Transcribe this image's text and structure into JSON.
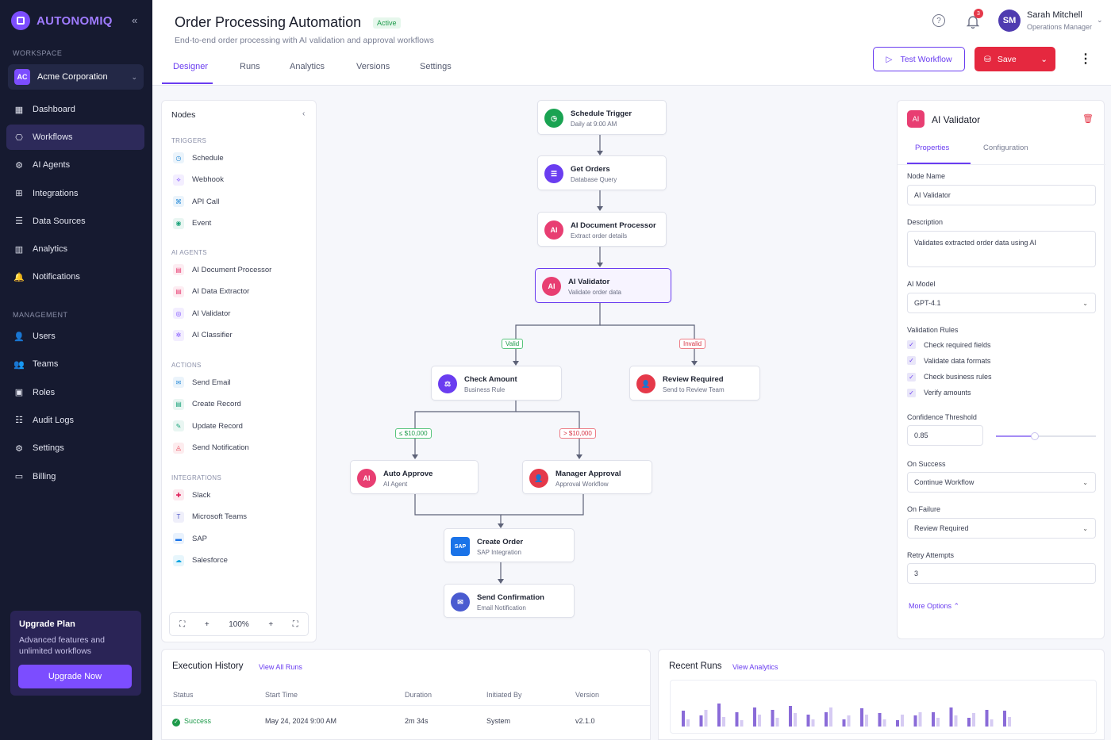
{
  "brand": {
    "name": "AUTONOMIQ"
  },
  "sidebar": {
    "workspace_label": "WORKSPACE",
    "workspace": {
      "initials": "AC",
      "name": "Acme Corporation"
    },
    "items": [
      {
        "label": "Dashboard",
        "icon": "dashboard-icon"
      },
      {
        "label": "Workflows",
        "icon": "workflow-icon",
        "active": true
      },
      {
        "label": "AI Agents",
        "icon": "ai-agent-icon"
      },
      {
        "label": "Integrations",
        "icon": "integrations-icon"
      },
      {
        "label": "Data Sources",
        "icon": "database-icon"
      },
      {
        "label": "Analytics",
        "icon": "analytics-icon"
      },
      {
        "label": "Notifications",
        "icon": "bell-icon"
      }
    ],
    "management_label": "MANAGEMENT",
    "management_items": [
      {
        "label": "Users",
        "icon": "users-icon"
      },
      {
        "label": "Teams",
        "icon": "teams-icon"
      },
      {
        "label": "Roles",
        "icon": "roles-icon"
      },
      {
        "label": "Audit Logs",
        "icon": "audit-icon"
      },
      {
        "label": "Settings",
        "icon": "settings-icon"
      },
      {
        "label": "Billing",
        "icon": "billing-icon"
      }
    ],
    "upgrade": {
      "title": "Upgrade Plan",
      "description": "Advanced features and unlimited workflows",
      "button": "Upgrade Now"
    }
  },
  "header": {
    "title": "Order Processing Automation",
    "status": "Active",
    "subtitle": "End-to-end order processing with AI validation and approval workflows",
    "tabs": [
      "Designer",
      "Runs",
      "Analytics",
      "Versions",
      "Settings"
    ],
    "notification_count": "3",
    "user": {
      "initials": "SM",
      "name": "Sarah Mitchell",
      "role": "Operations Manager"
    },
    "test_button": "Test Workflow",
    "save_button": "Save"
  },
  "nodes_panel": {
    "title": "Nodes",
    "sections": [
      {
        "label": "TRIGGERS",
        "items": [
          {
            "label": "Schedule",
            "color": "#2a8bd8",
            "icon": "clock-icon"
          },
          {
            "label": "Webhook",
            "color": "#7c4dff",
            "icon": "webhook-icon"
          },
          {
            "label": "API Call",
            "color": "#2a8bd8",
            "icon": "api-icon"
          },
          {
            "label": "Event",
            "color": "#1aa37a",
            "icon": "event-icon"
          }
        ]
      },
      {
        "label": "AI AGENTS",
        "items": [
          {
            "label": "AI Document Processor",
            "color": "#e83e72",
            "icon": "document-icon"
          },
          {
            "label": "AI Data Extractor",
            "color": "#e83e72",
            "icon": "extract-icon"
          },
          {
            "label": "AI Validator",
            "color": "#7c4dff",
            "icon": "validator-icon"
          },
          {
            "label": "AI Classifier",
            "color": "#7c4dff",
            "icon": "classifier-icon"
          }
        ]
      },
      {
        "label": "ACTIONS",
        "items": [
          {
            "label": "Send Email",
            "color": "#2a8bd8",
            "icon": "email-icon"
          },
          {
            "label": "Create Record",
            "color": "#1aa37a",
            "icon": "record-icon"
          },
          {
            "label": "Update Record",
            "color": "#1aa37a",
            "icon": "edit-icon"
          },
          {
            "label": "Send Notification",
            "color": "#e5394a",
            "icon": "bell-icon"
          }
        ]
      },
      {
        "label": "INTEGRATIONS",
        "items": [
          {
            "label": "Slack",
            "color": "#e01e5a",
            "icon": "slack-icon"
          },
          {
            "label": "Microsoft Teams",
            "color": "#5059c9",
            "icon": "teams-icon"
          },
          {
            "label": "SAP",
            "color": "#1a73e8",
            "icon": "sap-icon"
          },
          {
            "label": "Salesforce",
            "color": "#00a1e0",
            "icon": "salesforce-icon"
          }
        ]
      }
    ],
    "zoom": "100%"
  },
  "workflow": {
    "nodes": [
      {
        "id": "trigger",
        "title": "Schedule Trigger",
        "sub": "Daily at 9:00 AM",
        "color": "#1aa352",
        "icon": "clock-icon",
        "glyph": "◷"
      },
      {
        "id": "orders",
        "title": "Get Orders",
        "sub": "Database Query",
        "color": "#6a3df0",
        "icon": "database-icon",
        "glyph": "☰"
      },
      {
        "id": "docproc",
        "title": "AI Document Processor",
        "sub": "Extract order details",
        "color": "#e83e72",
        "icon": "ai-icon",
        "glyph": "AI"
      },
      {
        "id": "validator",
        "title": "AI Validator",
        "sub": "Validate order data",
        "color": "#e83e72",
        "icon": "ai-icon",
        "glyph": "AI",
        "selected": true
      },
      {
        "id": "check",
        "title": "Check Amount",
        "sub": "Business Rule",
        "color": "#6a3df0",
        "icon": "rule-icon",
        "glyph": "⚖"
      },
      {
        "id": "review",
        "title": "Review Required",
        "sub": "Send to Review Team",
        "color": "#e5394a",
        "icon": "review-icon",
        "glyph": "👤"
      },
      {
        "id": "auto",
        "title": "Auto Approve",
        "sub": "AI Agent",
        "color": "#e83e72",
        "icon": "ai-icon",
        "glyph": "AI"
      },
      {
        "id": "manager",
        "title": "Manager Approval",
        "sub": "Approval Workflow",
        "color": "#e5394a",
        "icon": "approval-icon",
        "glyph": "👤"
      },
      {
        "id": "create",
        "title": "Create Order",
        "sub": "SAP Integration",
        "color": "#1a73e8",
        "icon": "sap-icon",
        "glyph": "SAP"
      },
      {
        "id": "confirm",
        "title": "Send Confirmation",
        "sub": "Email Notification",
        "color": "#4a5bd0",
        "icon": "email-icon",
        "glyph": "✉"
      }
    ],
    "edge_labels": {
      "valid": "Valid",
      "invalid": "Invalid",
      "le": "≤ $10,000",
      "gt": "> $10,000"
    }
  },
  "properties": {
    "title": "AI Validator",
    "tabs": [
      "Properties",
      "Configuration"
    ],
    "node_name_label": "Node Name",
    "node_name": "AI Validator",
    "description_label": "Description",
    "description": "Validates extracted order data using AI",
    "model_label": "AI Model",
    "model": "GPT-4.1",
    "rules_label": "Validation Rules",
    "rules": [
      "Check required fields",
      "Validate data formats",
      "Check business rules",
      "Verify amounts"
    ],
    "threshold_label": "Confidence Threshold",
    "threshold": "0.85",
    "threshold_value": 0.85,
    "success_label": "On Success",
    "success": "Continue Workflow",
    "failure_label": "On Failure",
    "failure": "Review Required",
    "retry_label": "Retry Attempts",
    "retry": "3",
    "more_options": "More Options"
  },
  "execution": {
    "title": "Execution History",
    "link": "View All Runs",
    "columns": [
      "Status",
      "Start Time",
      "Duration",
      "Initiated By",
      "Version"
    ],
    "rows": [
      [
        "Success",
        "May 24, 2024 9:00 AM",
        "2m 34s",
        "System",
        "v2.1.0"
      ]
    ]
  },
  "recent": {
    "title": "Recent Runs",
    "link": "View Analytics",
    "bars": [
      [
        0.65,
        0.3
      ],
      [
        0.45,
        0.7
      ],
      [
        0.95,
        0.4
      ],
      [
        0.6,
        0.25
      ],
      [
        0.8,
        0.5
      ],
      [
        0.7,
        0.35
      ],
      [
        0.85,
        0.55
      ],
      [
        0.5,
        0.3
      ],
      [
        0.6,
        0.8
      ],
      [
        0.3,
        0.45
      ],
      [
        0.75,
        0.5
      ],
      [
        0.55,
        0.3
      ],
      [
        0.25,
        0.5
      ],
      [
        0.45,
        0.6
      ],
      [
        0.6,
        0.35
      ],
      [
        0.8,
        0.45
      ],
      [
        0.35,
        0.55
      ],
      [
        0.7,
        0.3
      ],
      [
        0.65,
        0.4
      ]
    ]
  }
}
